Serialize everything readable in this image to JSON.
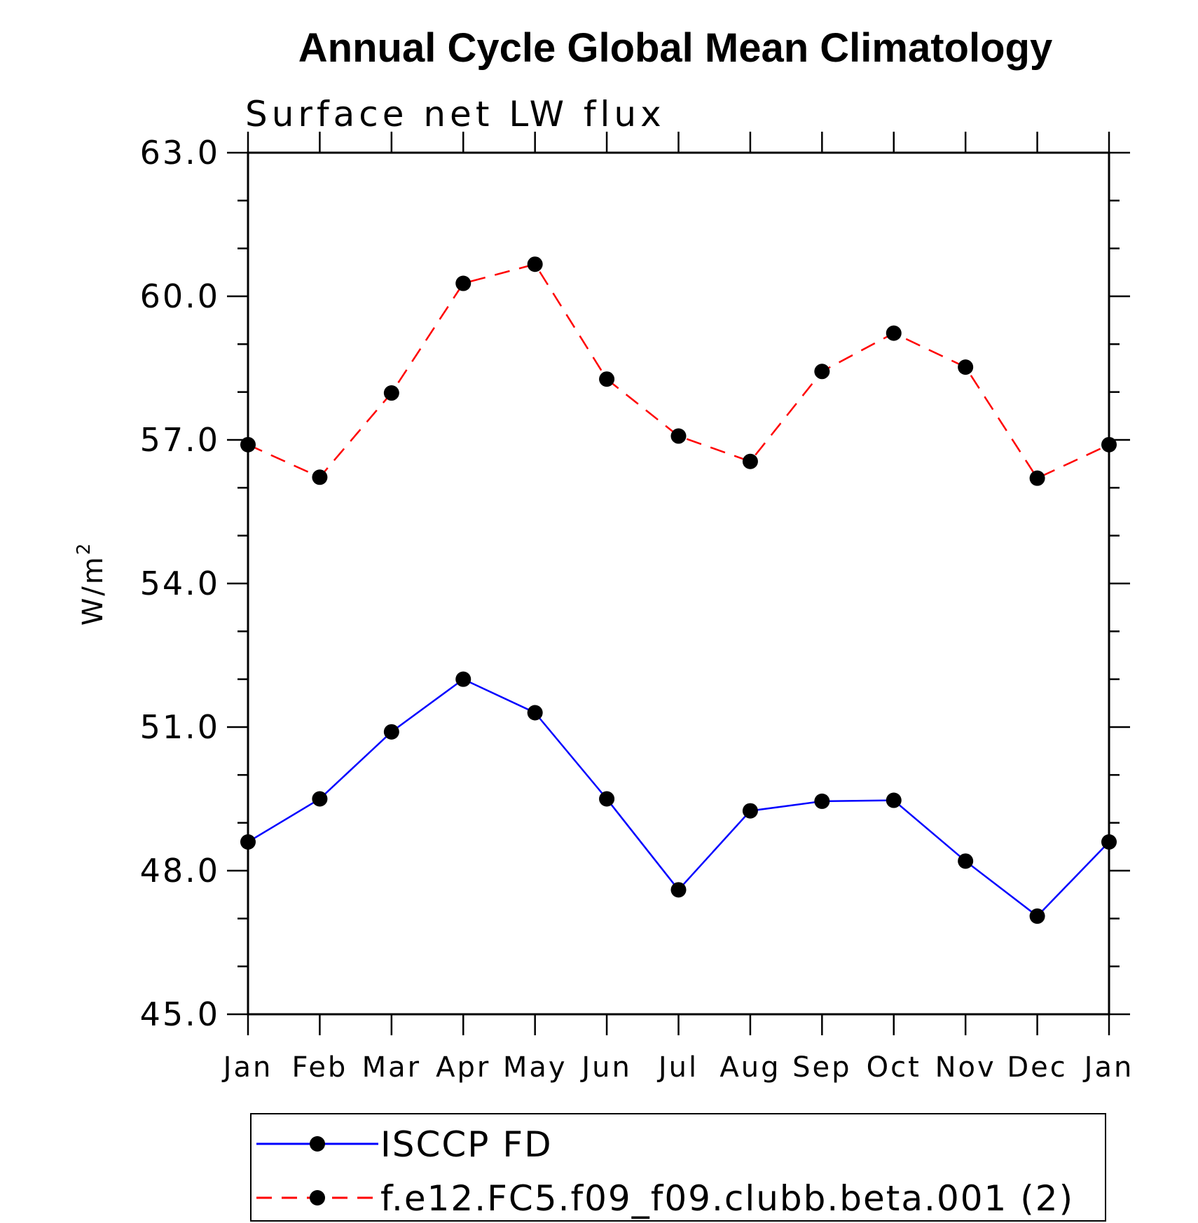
{
  "chart_data": {
    "type": "line",
    "title": "Annual Cycle Global Mean Climatology",
    "subtitle": "Surface net LW flux",
    "ylabel": "W/m",
    "ylabel_superscript": "2",
    "ylim": [
      45.0,
      63.0
    ],
    "y_ticks": [
      "45.0",
      "48.0",
      "51.0",
      "54.0",
      "57.0",
      "60.0",
      "63.0"
    ],
    "categories": [
      "Jan",
      "Feb",
      "Mar",
      "Apr",
      "May",
      "Jun",
      "Jul",
      "Aug",
      "Sep",
      "Oct",
      "Nov",
      "Dec",
      "Jan"
    ],
    "series": [
      {
        "name": "ISCCP FD",
        "color": "#0000ff",
        "dash": "solid",
        "values": [
          48.6,
          49.5,
          50.9,
          52.0,
          51.3,
          49.5,
          47.6,
          49.25,
          49.45,
          49.47,
          48.2,
          47.05,
          48.6
        ]
      },
      {
        "name": "f.e12.FC5.f09_f09.clubb.beta.001 (2)",
        "color": "#ff0000",
        "dash": "dashed",
        "values": [
          56.9,
          56.22,
          57.98,
          60.27,
          60.67,
          58.27,
          57.08,
          56.55,
          58.43,
          59.23,
          58.52,
          56.2,
          56.9
        ]
      }
    ],
    "marker_color": "#000000",
    "legend_position": "bottom"
  }
}
